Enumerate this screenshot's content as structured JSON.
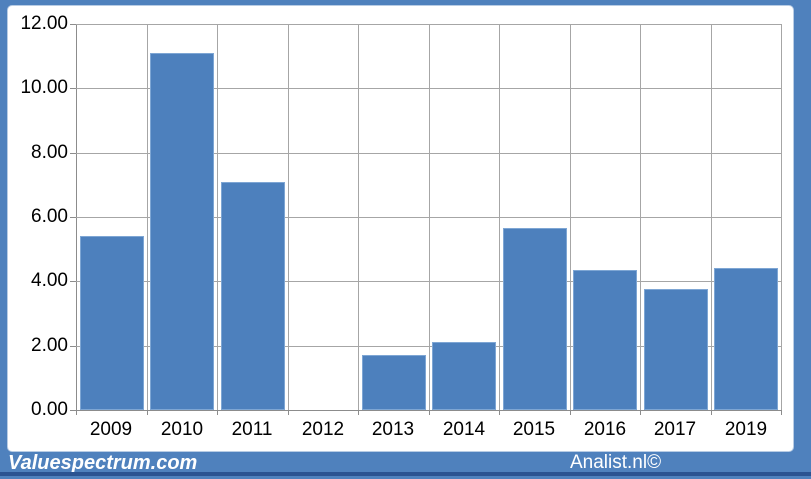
{
  "frame": {
    "background_color": "#4f81bd",
    "panel_color": "#ffffff",
    "bottom_strip_color": "#2b5391"
  },
  "footer": {
    "left_brand": "Valuespectrum.com",
    "right_brand": "Analist.nl©"
  },
  "chart_data": {
    "type": "bar",
    "categories": [
      "2009",
      "2010",
      "2011",
      "2012",
      "2013",
      "2014",
      "2015",
      "2016",
      "2017",
      "2019"
    ],
    "values": [
      5.4,
      11.1,
      7.1,
      0,
      1.7,
      2.1,
      5.65,
      4.35,
      3.75,
      4.4
    ],
    "title": "",
    "xlabel": "",
    "ylabel": "",
    "ylim": [
      0,
      12
    ],
    "ytick_step": 2,
    "ytick_labels": [
      "0.00",
      "2.00",
      "4.00",
      "6.00",
      "8.00",
      "10.00",
      "12.00"
    ],
    "grid": true,
    "legend": null,
    "bar_color": "#4d80bd",
    "bar_border_color": "#7ea6d4",
    "gridline_color": "#a6a6a6",
    "axis_color": "#8c8c8c",
    "label_color": "#000000"
  }
}
